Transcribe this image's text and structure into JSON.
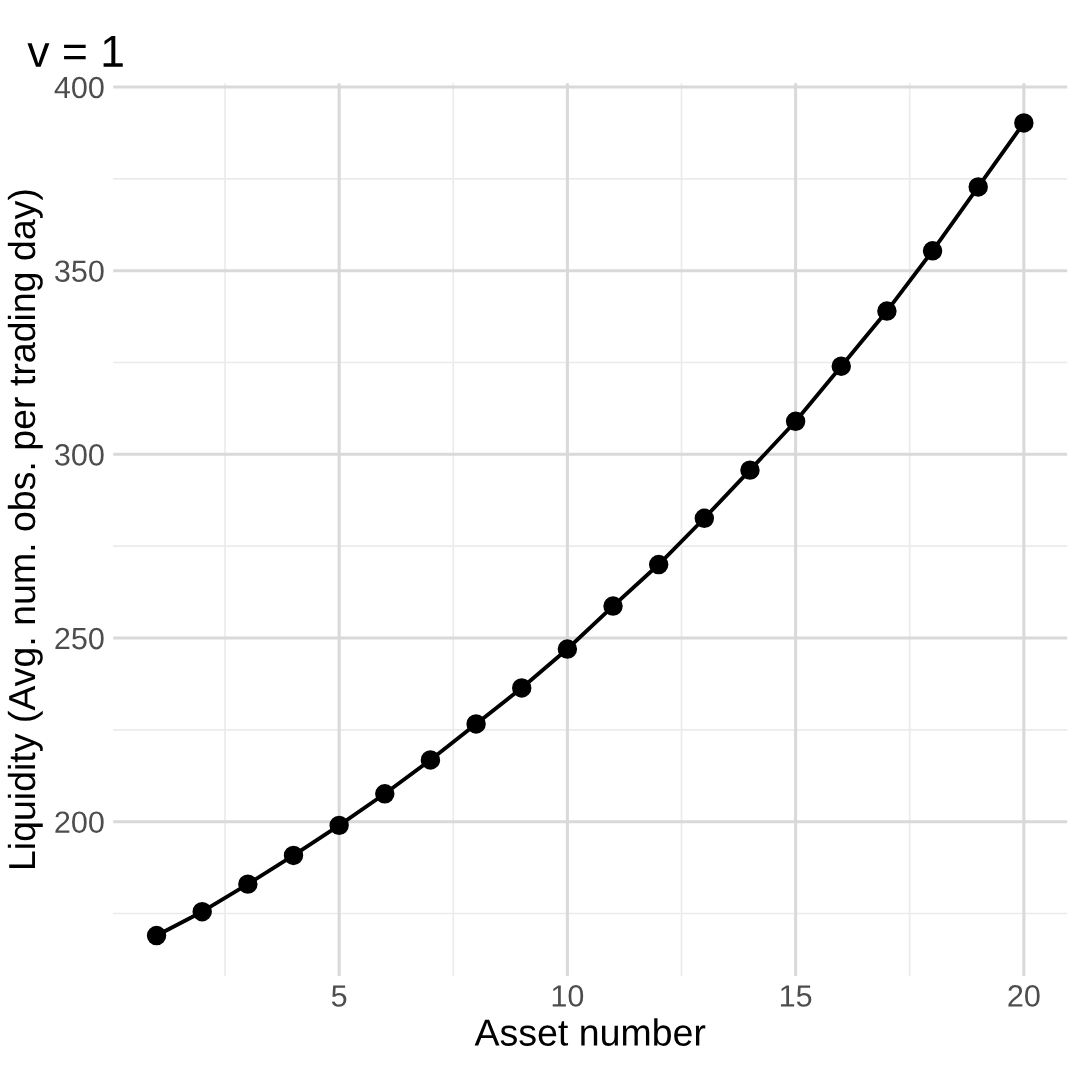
{
  "chart_data": {
    "type": "line",
    "title": "v = 1",
    "xlabel": "Asset number",
    "ylabel": "Liquidity (Avg. num. obs. per trading day)",
    "x": [
      1,
      2,
      3,
      4,
      5,
      6,
      7,
      8,
      9,
      10,
      11,
      12,
      13,
      14,
      15,
      16,
      17,
      18,
      19,
      20
    ],
    "series": [
      {
        "color": "#000000",
        "values": [
          169,
          175.5,
          183,
          190.8,
          199,
          207.6,
          216.8,
          226.6,
          236.4,
          247,
          258.7,
          270,
          282.6,
          295.7,
          309,
          324,
          339,
          355.4,
          372.8,
          390.2
        ]
      }
    ],
    "xlim": [
      0.05,
      20.95
    ],
    "ylim": [
      158,
      401
    ],
    "xticks": [
      5,
      10,
      15,
      20
    ],
    "yticks": [
      200,
      250,
      300,
      350,
      400
    ],
    "grid": true,
    "marker": "circle",
    "line_style": "solid"
  }
}
